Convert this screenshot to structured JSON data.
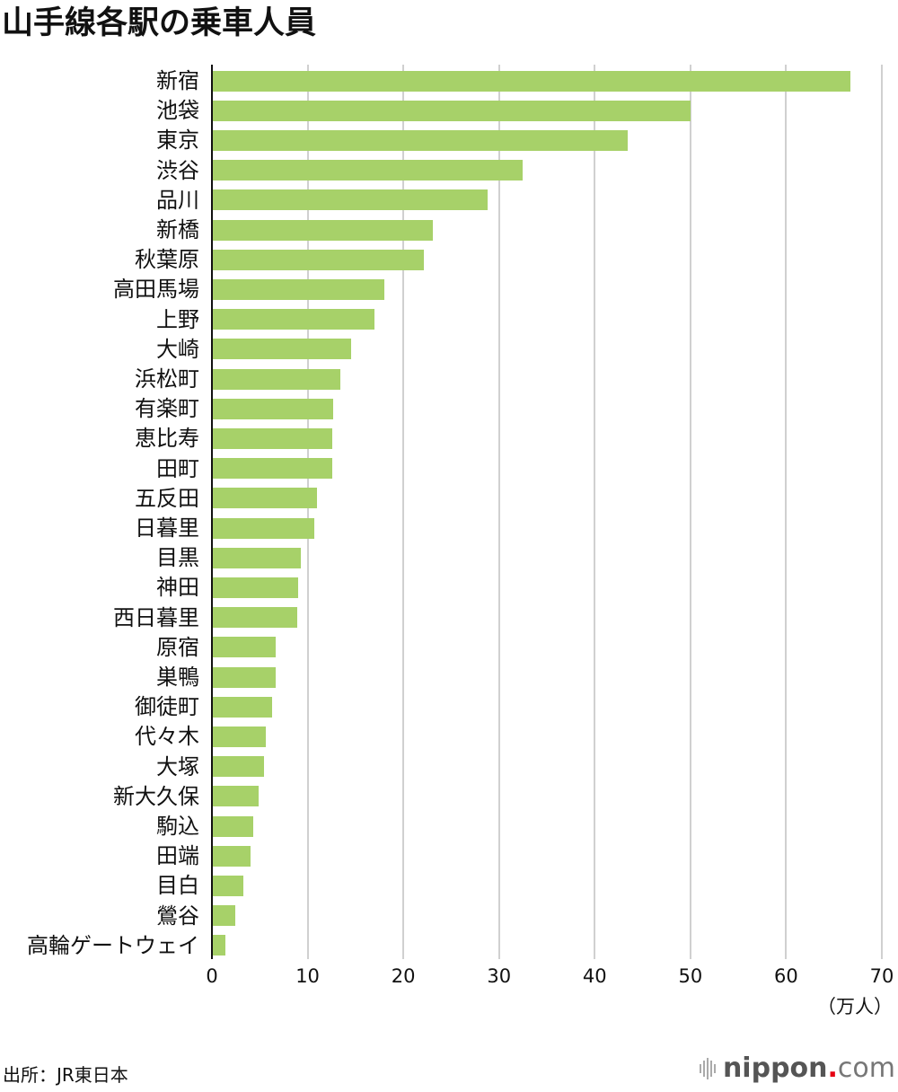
{
  "title": "山手線各駅の乗車人員",
  "source": "出所：JR東日本",
  "logo": {
    "brand": "nippon",
    "dot": ".",
    "tld": "com"
  },
  "axis": {
    "unit_label": "（万人）",
    "ticks": [
      "0",
      "10",
      "20",
      "30",
      "40",
      "50",
      "60",
      "70"
    ]
  },
  "colors": {
    "bar": "#a7d169",
    "grid": "#d0d0d0",
    "axis": "#111111",
    "logo_dot": "#e60012"
  },
  "chart_data": {
    "type": "bar",
    "orientation": "horizontal",
    "title": "山手線各駅の乗車人員",
    "xlabel": "（万人）",
    "ylabel": "",
    "xlim": [
      0,
      70
    ],
    "xticks": [
      0,
      10,
      20,
      30,
      40,
      50,
      60,
      70
    ],
    "grid": true,
    "legend": null,
    "categories": [
      "新宿",
      "池袋",
      "東京",
      "渋谷",
      "品川",
      "新橋",
      "秋葉原",
      "高田馬場",
      "上野",
      "大崎",
      "浜松町",
      "有楽町",
      "恵比寿",
      "田町",
      "五反田",
      "日暮里",
      "目黒",
      "神田",
      "西日暮里",
      "原宿",
      "巣鴨",
      "御徒町",
      "代々木",
      "大塚",
      "新大久保",
      "駒込",
      "田端",
      "目白",
      "鶯谷",
      "高輪ゲートウェイ"
    ],
    "values": [
      66.7,
      50.0,
      43.4,
      32.5,
      28.8,
      23.1,
      22.1,
      18.0,
      17.0,
      14.5,
      13.4,
      12.7,
      12.6,
      12.6,
      11.0,
      10.7,
      9.3,
      9.0,
      8.9,
      6.7,
      6.7,
      6.3,
      5.6,
      5.4,
      4.9,
      4.3,
      4.0,
      3.3,
      2.4,
      1.4
    ],
    "source": "出所：JR東日本"
  }
}
